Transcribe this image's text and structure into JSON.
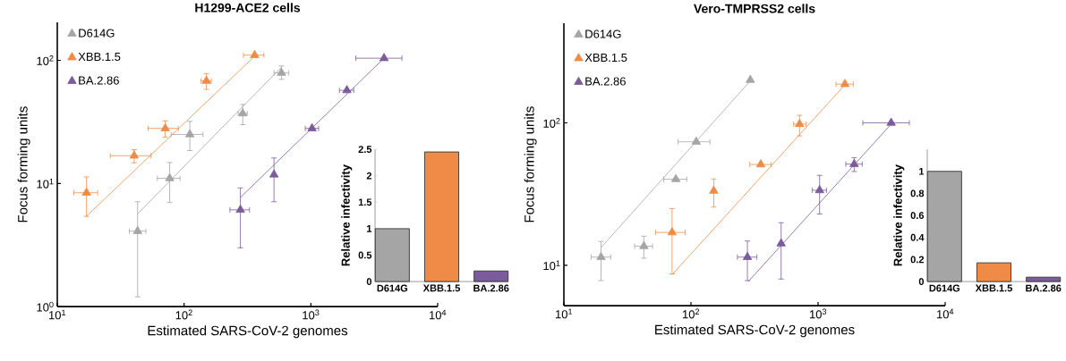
{
  "chart_data": [
    {
      "type": "scatter",
      "title": "H1299-ACE2 cells",
      "xlabel": "Estimated SARS-CoV-2 genomes",
      "ylabel": "Focus forming units",
      "log": "xy",
      "marker": "triangle",
      "legend": "top left",
      "xlim": [
        10,
        10000
      ],
      "ylim": [
        1,
        203
      ],
      "xticks": [
        {
          "value": 10,
          "label": "10$^{1}$"
        },
        {
          "value": 100,
          "label": "10$^{2}$"
        },
        {
          "value": 1000,
          "label": "10$^{3}$"
        },
        {
          "value": 10000,
          "label": "10$^{4}$"
        }
      ],
      "yticks": [
        {
          "value": 1,
          "label": "10$^{0}$"
        },
        {
          "value": 10,
          "label": "10$^{1}$"
        },
        {
          "value": 100,
          "label": "10$^{2}$"
        }
      ],
      "series": [
        {
          "name": "D614G",
          "color": "#a5a5a5",
          "x": [
            43,
            77,
            111,
            290,
            586
          ],
          "values": [
            4.1,
            11,
            25,
            37,
            79
          ],
          "errors": [
            [
              1.2,
              7.1
            ],
            [
              7.0,
              14.8
            ],
            [
              18.5,
              31.9
            ],
            [
              30,
              43.8
            ],
            [
              70,
              90
            ]
          ],
          "xerrors": [
            [
              37,
              50
            ],
            [
              61.5,
              93
            ],
            [
              79,
              141
            ],
            [
              267,
              315
            ],
            [
              512,
              670
            ]
          ]
        },
        {
          "name": "XBB.1.5",
          "color": "#ef8b46",
          "x": [
            17,
            40.4,
            71,
            150,
            360
          ],
          "values": [
            8.4,
            16.8,
            28,
            68,
            110
          ],
          "errors": [
            [
              5.4,
              11.3
            ],
            [
              14.7,
              18.8
            ],
            [
              23.7,
              32.2
            ],
            [
              58,
              78
            ],
            null
          ],
          "xerrors": [
            [
              13.5,
              20.8
            ],
            [
              26.2,
              54.8
            ],
            [
              52,
              90
            ],
            [
              136,
              164
            ],
            [
              294,
              426
            ]
          ]
        },
        {
          "name": "BA.2.86",
          "color": "#7b5b9b",
          "x": [
            278,
            512,
            1021,
            1923,
            3776
          ],
          "values": [
            6.1,
            11.8,
            28,
            57,
            104
          ],
          "errors": [
            [
              3.0,
              9.2
            ],
            [
              7.1,
              16.1
            ],
            null,
            null,
            null
          ],
          "xerrors": [
            [
              230,
              328
            ],
            null,
            [
              902,
              1151
            ],
            [
              1679,
              2178
            ],
            [
              2259,
              5225
            ]
          ]
        },
        {
          "type": "line",
          "marker": "none",
          "color": "#a5a5a5",
          "x": [
            43,
            586
          ],
          "values": [
            5.66,
            88
          ]
        },
        {
          "type": "line",
          "marker": "none",
          "color": "#ef8b46",
          "x": [
            17,
            360
          ],
          "values": [
            5.42,
            108
          ]
        },
        {
          "type": "line",
          "marker": "none",
          "color": "#7b5b9b",
          "x": [
            278,
            3776
          ],
          "values": [
            7.69,
            104
          ]
        }
      ]
    },
    {
      "type": "scatter",
      "title": "Vero-TMPRSS2 cells",
      "xlabel": "Estimated SARS-CoV-2 genomes",
      "ylabel": "Focus forming units",
      "log": "xy",
      "marker": "triangle",
      "legend": "top left",
      "xlim": [
        10,
        10000
      ],
      "ylim": [
        5.2,
        500
      ],
      "xticks": [
        {
          "value": 10,
          "label": "10$^{1}$"
        },
        {
          "value": 100,
          "label": "10$^{2}$"
        },
        {
          "value": 1000,
          "label": "10$^{3}$"
        },
        {
          "value": 10000,
          "label": "10$^{4}$"
        }
      ],
      "yticks": [
        {
          "value": 10,
          "label": "10$^{1}$"
        },
        {
          "value": 100,
          "label": "10$^{2}$"
        }
      ],
      "series": [
        {
          "name": "D614G",
          "color": "#a5a5a5",
          "x": [
            19.6,
            42.6,
            76,
            110,
            293
          ],
          "values": [
            11.4,
            13.6,
            40.2,
            73.6,
            200
          ],
          "errors": [
            [
              7.8,
              14.7
            ],
            [
              11.2,
              16
            ],
            null,
            null,
            null
          ],
          "xerrors": [
            [
              16.4,
              23.4
            ],
            [
              36,
              49.8
            ],
            [
              61,
              92.7
            ],
            [
              79,
              141
            ],
            null
          ]
        },
        {
          "name": "XBB.1.5",
          "color": "#ef8b46",
          "x": [
            71,
            151,
            354,
            715,
            1626
          ],
          "values": [
            17,
            33.3,
            51,
            98,
            187
          ],
          "errors": [
            [
              8.7,
              25
            ],
            [
              25.6,
              40.4
            ],
            null,
            [
              81,
              113
            ],
            null
          ],
          "xerrors": [
            [
              52.6,
              90
            ],
            null,
            [
              290,
              428
            ],
            [
              642,
              805
            ],
            [
              1384,
              1893
            ]
          ]
        },
        {
          "name": "BA.2.86",
          "color": "#7b5b9b",
          "x": [
            278,
            512,
            1028,
            1923,
            3758
          ],
          "values": [
            11.4,
            14.2,
            33.6,
            51.3,
            100
          ],
          "errors": [
            [
              7.8,
              14.8
            ],
            [
              8.0,
              19.9
            ],
            [
              22.9,
              42.8
            ],
            [
              45.5,
              57
            ],
            null
          ],
          "xerrors": [
            [
              232,
              330
            ],
            null,
            [
              898,
              1164
            ],
            [
              1652,
              2223
            ],
            [
              2249,
              5229
            ]
          ]
        },
        {
          "type": "line",
          "marker": "none",
          "color": "#a5a5a5",
          "x": [
            19.6,
            293
          ],
          "values": [
            13.3,
            197
          ]
        },
        {
          "type": "line",
          "marker": "none",
          "color": "#ef8b46",
          "x": [
            71,
            1626
          ],
          "values": [
            8.58,
            185
          ]
        },
        {
          "type": "line",
          "marker": "none",
          "color": "#7b5b9b",
          "x": [
            282,
            3758
          ],
          "values": [
            7.67,
            98
          ]
        }
      ]
    },
    {
      "type": "bar",
      "ylabel": "Relative infectivity",
      "categories": [
        "D614G",
        "XBB.1.5",
        "BA.2.86"
      ],
      "values": [
        1,
        2.45,
        0.2
      ],
      "colors": [
        "#a5a5a5",
        "#ef8b46",
        "#7b5b9b"
      ],
      "ylim": [
        0,
        2.5
      ],
      "yticks": [
        0,
        0.5,
        1,
        1.5,
        2,
        2.5
      ]
    },
    {
      "type": "bar",
      "ylabel": "Relative infectivity",
      "categories": [
        "D614G",
        "XBB.1.5",
        "BA.2.86"
      ],
      "values": [
        1,
        0.17,
        0.04
      ],
      "colors": [
        "#a5a5a5",
        "#ef8b46",
        "#7b5b9b"
      ],
      "ylim": [
        0,
        1.2
      ],
      "yticks": [
        0,
        0.2,
        0.4,
        0.6,
        0.8,
        1
      ]
    }
  ]
}
